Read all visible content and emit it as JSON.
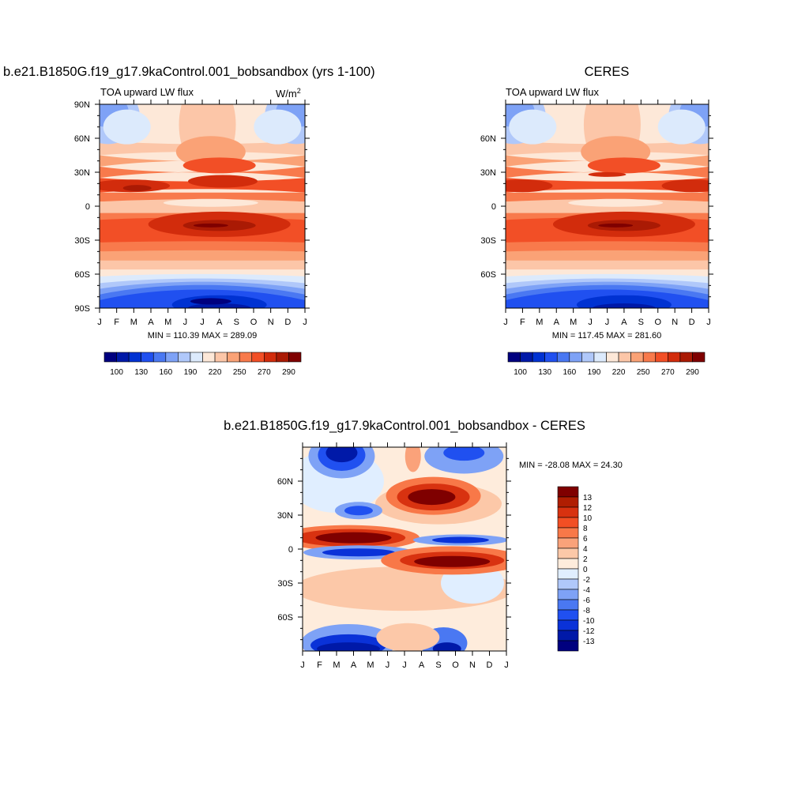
{
  "panels": [
    {
      "title": "b.e21.B1850G.f19_g17.9kaControl.001_bobsandbox (yrs 1-100)",
      "left_label": "TOA upward LW flux",
      "units": "W/m",
      "units_sup": "2",
      "lat_ticks": [
        "90N",
        "60N",
        "30N",
        "0",
        "30S",
        "60S",
        "90S"
      ],
      "month_ticks": [
        "J",
        "F",
        "M",
        "A",
        "M",
        "J",
        "J",
        "A",
        "S",
        "O",
        "N",
        "D",
        "J"
      ],
      "minmax": "MIN = 110.39 MAX = 289.09"
    },
    {
      "title": "CERES",
      "left_label": "TOA upward LW flux",
      "lat_ticks": [
        "60N",
        "30N",
        "0",
        "30S",
        "60S"
      ],
      "month_ticks": [
        "J",
        "F",
        "M",
        "A",
        "M",
        "J",
        "J",
        "A",
        "S",
        "O",
        "N",
        "D",
        "J"
      ],
      "minmax": "MIN = 117.45 MAX = 281.60"
    },
    {
      "title": "b.e21.B1850G.f19_g17.9kaControl.001_bobsandbox - CERES",
      "lat_ticks": [
        "60N",
        "30N",
        "0",
        "30S",
        "60S"
      ],
      "month_ticks": [
        "J",
        "F",
        "M",
        "A",
        "M",
        "J",
        "J",
        "A",
        "S",
        "O",
        "N",
        "D",
        "J"
      ],
      "minmax": "MIN = -28.08 MAX =  24.30"
    }
  ],
  "colorbars": {
    "absolute": {
      "colors": [
        "#00007f",
        "#0019a8",
        "#0032d2",
        "#2050f0",
        "#4a78f2",
        "#7ea2f6",
        "#b0c8fa",
        "#dceafc",
        "#fde8d8",
        "#fcc6a8",
        "#faa276",
        "#f87a4c",
        "#f24f26",
        "#d22c0c",
        "#aa1a04",
        "#7f0000"
      ],
      "labels": [
        "100",
        "130",
        "160",
        "190",
        "220",
        "250",
        "270",
        "290"
      ]
    },
    "difference": {
      "colors": [
        "#7f0000",
        "#b01e02",
        "#d83210",
        "#f24f24",
        "#f87848",
        "#faa27a",
        "#fcc8a8",
        "#feecdc",
        "#e0eeff",
        "#b0c8fa",
        "#7ea2f6",
        "#4a78f2",
        "#2050f0",
        "#0a32d8",
        "#0019a8",
        "#00007f"
      ],
      "labels": [
        "13",
        "12",
        "10",
        "8",
        "6",
        "4",
        "2",
        "0",
        "-2",
        "-4",
        "-6",
        "-8",
        "-10",
        "-12",
        "-13"
      ]
    }
  },
  "chart_data": [
    {
      "type": "heatmap",
      "title": "b.e21.B1850G.f19_g17.9kaControl.001_bobsandbox (yrs 1-100)",
      "subtitle": "TOA upward LW flux",
      "units": "W/m2",
      "x": [
        "J",
        "F",
        "M",
        "A",
        "M",
        "J",
        "J",
        "A",
        "S",
        "O",
        "N",
        "D",
        "J"
      ],
      "y": [
        "90N",
        "60N",
        "30N",
        "0",
        "30S",
        "60S",
        "90S"
      ],
      "ylim": [
        -90,
        90
      ],
      "min": 110.39,
      "max": 289.09,
      "features": [
        {
          "lat": 18,
          "month": 2.5,
          "value": 285
        },
        {
          "lat": 15,
          "month": 7,
          "value": 275
        },
        {
          "lat": 0,
          "month": 6,
          "value": 240
        },
        {
          "lat": -15,
          "month": 7.5,
          "value": 289
        },
        {
          "lat": -25,
          "month": 1,
          "value": 265
        },
        {
          "lat": 65,
          "month": 6.5,
          "value": 225
        },
        {
          "lat": 75,
          "month": 0.5,
          "value": 175
        },
        {
          "lat": -80,
          "month": 7,
          "value": 120
        }
      ]
    },
    {
      "type": "heatmap",
      "title": "CERES",
      "subtitle": "TOA upward LW flux",
      "x": [
        "J",
        "F",
        "M",
        "A",
        "M",
        "J",
        "J",
        "A",
        "S",
        "O",
        "N",
        "D",
        "J"
      ],
      "y": [
        "60N",
        "30N",
        "0",
        "30S",
        "60S"
      ],
      "ylim": [
        -90,
        90
      ],
      "min": 117.45,
      "max": 281.6,
      "features": [
        {
          "lat": 18,
          "month": 6,
          "value": 270
        },
        {
          "lat": 0,
          "month": 6,
          "value": 235
        },
        {
          "lat": -15,
          "month": 6,
          "value": 281
        },
        {
          "lat": 75,
          "month": 0.5,
          "value": 180
        },
        {
          "lat": -80,
          "month": 6,
          "value": 125
        }
      ]
    },
    {
      "type": "heatmap",
      "title": "b.e21.B1850G.f19_g17.9kaControl.001_bobsandbox - CERES",
      "x": [
        "J",
        "F",
        "M",
        "A",
        "M",
        "J",
        "J",
        "A",
        "S",
        "O",
        "N",
        "D",
        "J"
      ],
      "y": [
        "60N",
        "30N",
        "0",
        "30S",
        "60S"
      ],
      "ylim": [
        -90,
        90
      ],
      "min": -28.08,
      "max": 24.3,
      "features": [
        {
          "lat": 10,
          "month": 3,
          "value": 24
        },
        {
          "lat": -10,
          "month": 8.5,
          "value": 22
        },
        {
          "lat": 45,
          "month": 7.5,
          "value": 16
        },
        {
          "lat": -3,
          "month": 3.5,
          "value": -14
        },
        {
          "lat": 5,
          "month": 9,
          "value": -12
        },
        {
          "lat": 35,
          "month": 3,
          "value": -10
        },
        {
          "lat": 83,
          "month": 2,
          "value": -28
        },
        {
          "lat": -83,
          "month": 2.5,
          "value": -25
        }
      ]
    }
  ]
}
